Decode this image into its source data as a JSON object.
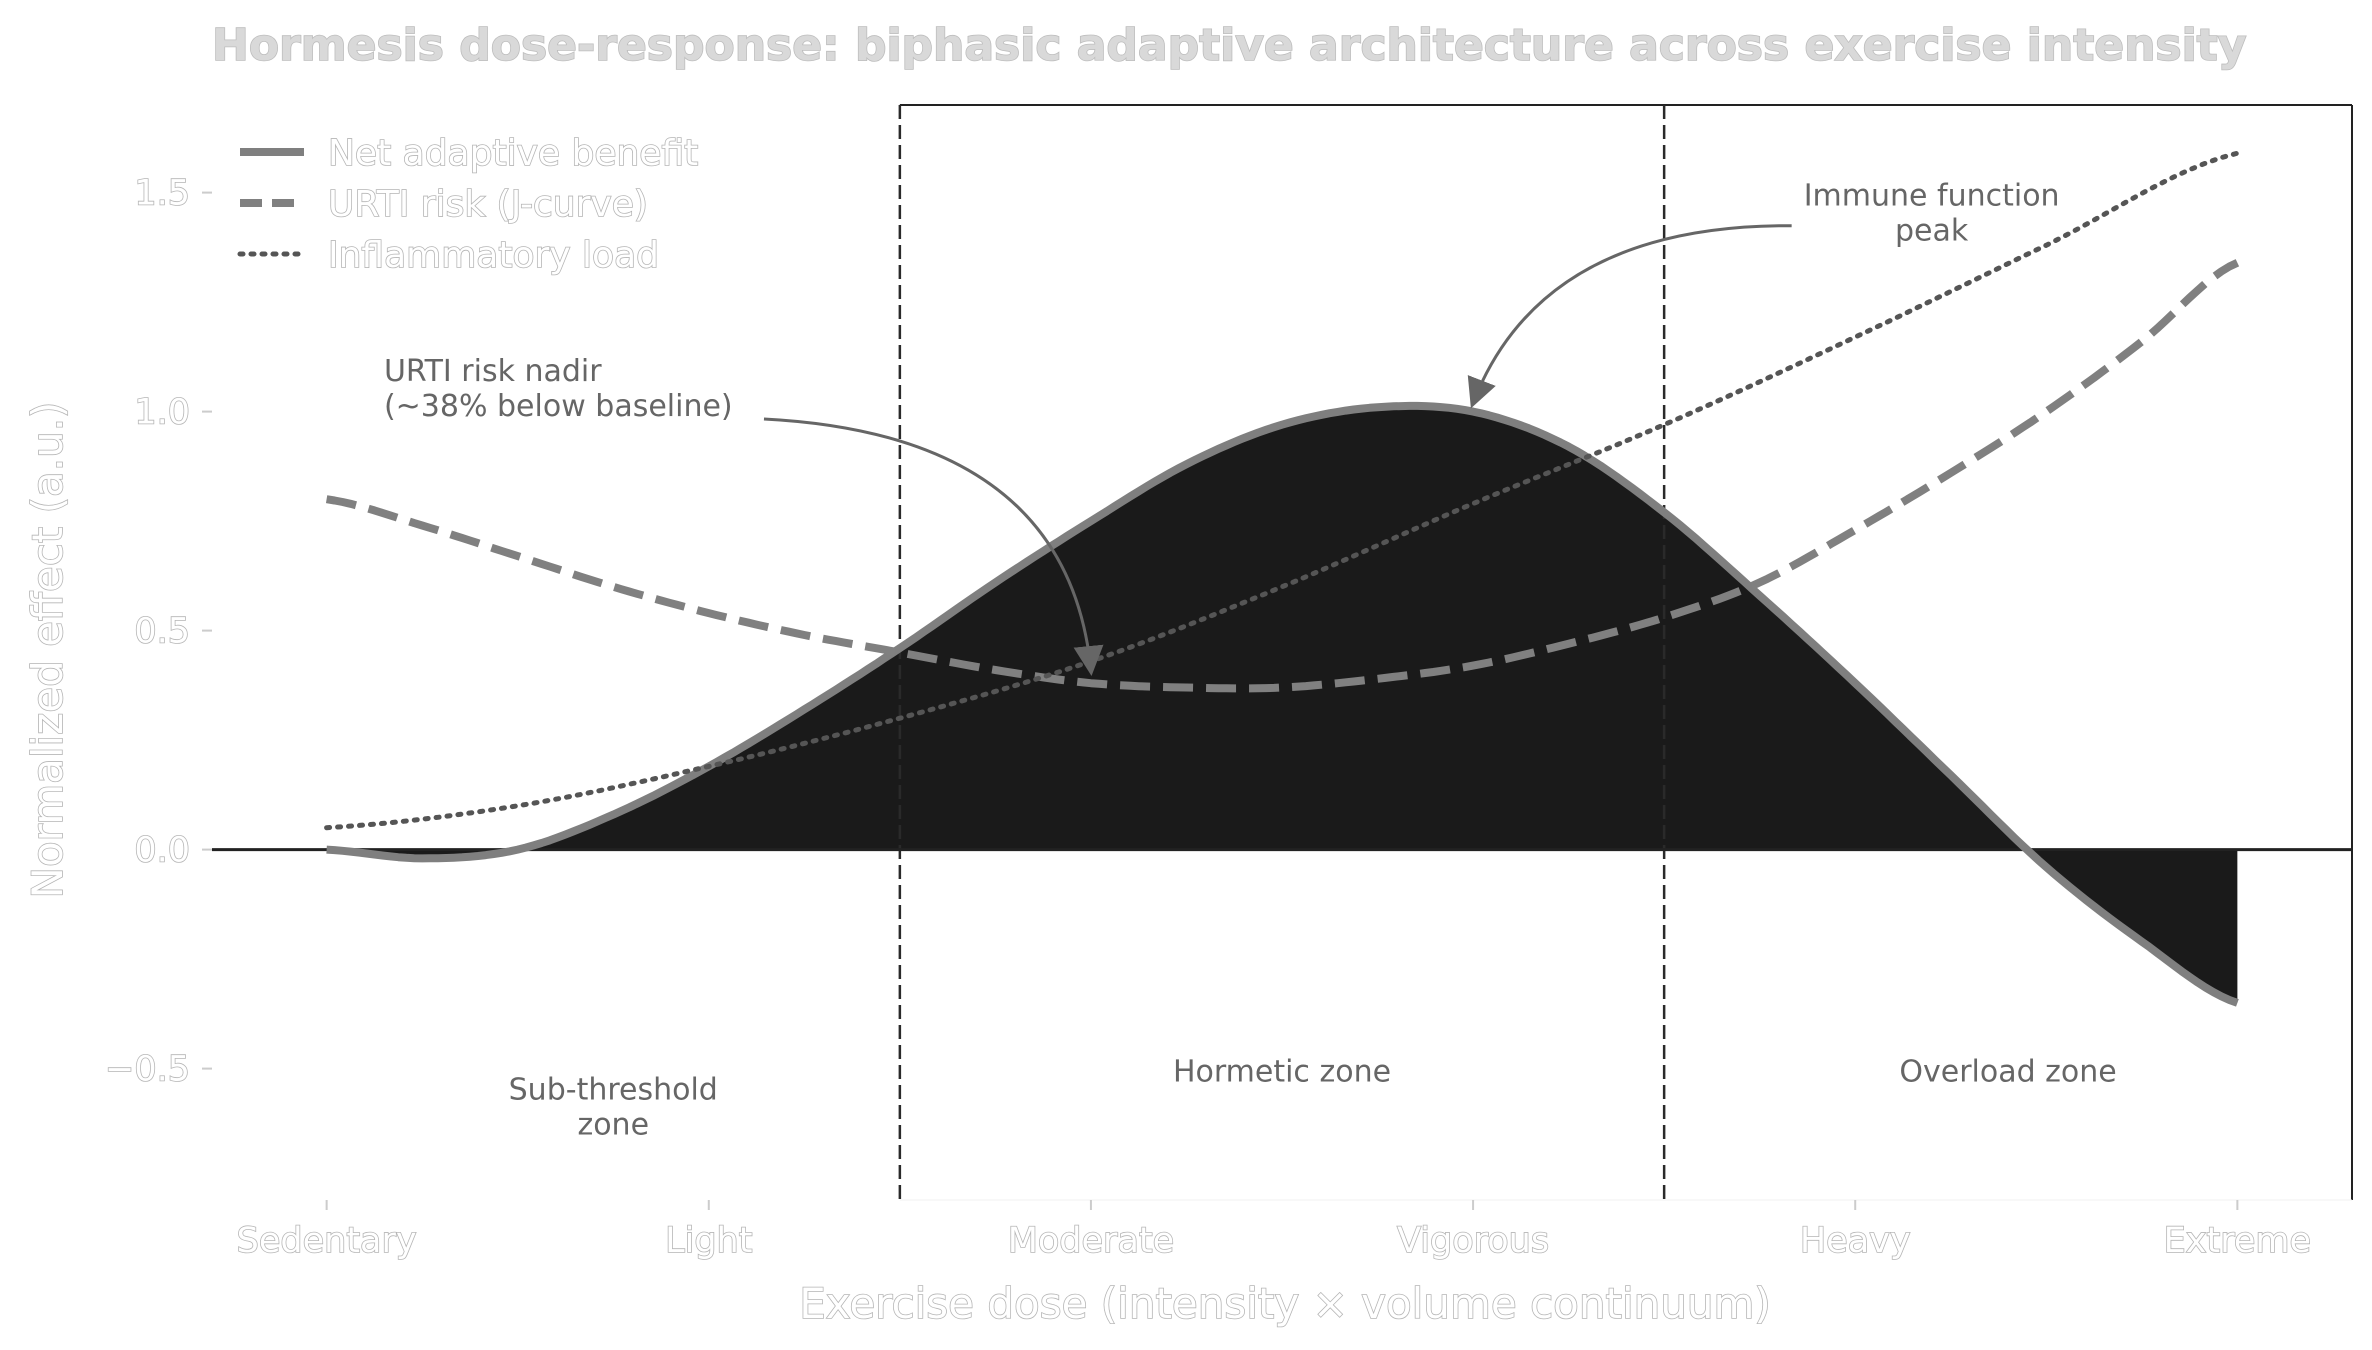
{
  "chart_data": {
    "type": "line",
    "title": "Hormesis dose-response: biphasic adaptive architecture across exercise intensity",
    "xlabel": "Exercise dose (intensity × volume continuum)",
    "ylabel": "Normalized effect (a.u.)",
    "categories": [
      "Sedentary",
      "Light",
      "Moderate",
      "Vigorous",
      "Heavy",
      "Extreme"
    ],
    "xlim": [
      -0.3,
      5.3
    ],
    "ylim": [
      -0.8,
      1.7
    ],
    "yticks": [
      -0.5,
      0.0,
      0.5,
      1.0,
      1.5
    ],
    "ytick_labels": [
      "−0.5",
      "0.0",
      "0.5",
      "1.0",
      "1.5"
    ],
    "grid": false,
    "legend_position": "upper-left",
    "series": [
      {
        "name": "Net adaptive benefit",
        "style": "solid",
        "fill_between_zero": true,
        "x": [
          0,
          0.25,
          0.5,
          0.75,
          1.0,
          1.25,
          1.5,
          1.75,
          2.0,
          2.25,
          2.5,
          2.75,
          3.0,
          3.25,
          3.5,
          3.75,
          4.0,
          4.25,
          4.5,
          4.75,
          5.0
        ],
        "values": [
          0.0,
          -0.02,
          0.0,
          0.08,
          0.19,
          0.32,
          0.46,
          0.61,
          0.75,
          0.88,
          0.97,
          1.01,
          1.0,
          0.92,
          0.77,
          0.58,
          0.38,
          0.17,
          -0.04,
          -0.21,
          -0.35
        ]
      },
      {
        "name": "URTI risk (J-curve)",
        "style": "dashed",
        "x": [
          0,
          0.25,
          0.5,
          0.75,
          1.0,
          1.25,
          1.5,
          1.75,
          2.0,
          2.25,
          2.5,
          2.75,
          3.0,
          3.25,
          3.5,
          3.75,
          4.0,
          4.25,
          4.5,
          4.75,
          5.0
        ],
        "values": [
          0.8,
          0.74,
          0.67,
          0.6,
          0.54,
          0.49,
          0.45,
          0.41,
          0.38,
          0.37,
          0.37,
          0.39,
          0.42,
          0.47,
          0.53,
          0.61,
          0.73,
          0.86,
          1.0,
          1.16,
          1.34
        ]
      },
      {
        "name": "Inflammatory load",
        "style": "dotted",
        "x": [
          0,
          0.5,
          1.0,
          1.5,
          2.0,
          2.5,
          3.0,
          3.5,
          4.0,
          4.5,
          5.0
        ],
        "values": [
          0.05,
          0.1,
          0.19,
          0.3,
          0.43,
          0.6,
          0.79,
          0.97,
          1.17,
          1.38,
          1.59
        ]
      }
    ],
    "zone_boundaries": [
      1.5,
      3.5
    ],
    "zones": [
      {
        "label": "Sub-threshold\nzone",
        "x": 0.75,
        "y": -0.57
      },
      {
        "label": "Hormetic zone",
        "x": 2.5,
        "y": -0.53
      },
      {
        "label": "Overload zone",
        "x": 4.4,
        "y": -0.53
      }
    ],
    "annotations": [
      {
        "text": "URTI risk nadir\n(~38% below baseline)",
        "text_x": 0.15,
        "text_y": 1.07,
        "point_x": 2.0,
        "point_y": 0.41
      },
      {
        "text": "Immune function\npeak",
        "text_x": 4.2,
        "text_y": 1.47,
        "point_x": 3.0,
        "point_y": 1.02
      }
    ]
  },
  "colors": {
    "fill": "#1a1a1a",
    "benefit_line": "#7f7f7f",
    "urti_line": "#808080",
    "inflammatory_line": "#555555",
    "annotation": "#666666",
    "hollow_stroke": "#b5b5b5",
    "axes": "#222222"
  }
}
